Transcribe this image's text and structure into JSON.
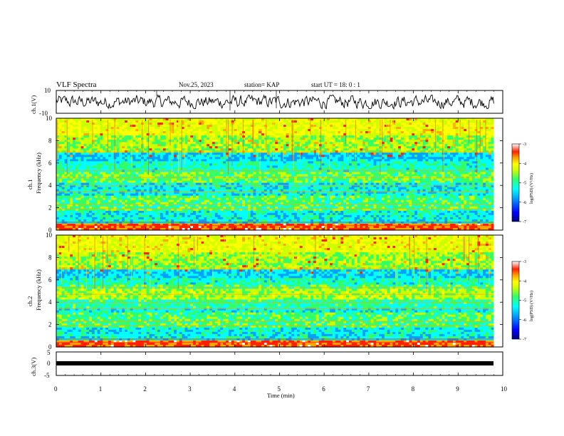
{
  "header": {
    "title": "VLF Spectra",
    "date": "Nov.25, 2023",
    "station": "station= KAP",
    "start_ut": "start  UT =   18: 0  : 1"
  },
  "chart_data": [
    {
      "type": "line",
      "panel": "ch1-waveform",
      "ylabel": "ch.1(V)",
      "ylim": [
        -10,
        10
      ],
      "ytick_labels": [
        "10",
        "-10"
      ],
      "x_range_min": [
        0,
        9.8
      ],
      "note": "noisy waveform trace, amplitude mostly between about -5 and +5 V"
    },
    {
      "type": "heatmap",
      "panel": "ch1-spectrogram",
      "ylabel": "Frequency  (kHz)",
      "channel_label": "ch.1",
      "ylim": [
        0,
        10
      ],
      "ytick_labels": [
        "0",
        "2",
        "4",
        "6",
        "8",
        "10"
      ],
      "x_range_min": [
        0,
        9.8
      ],
      "colorbar": {
        "label": "log(PSD) (V²/Hz)",
        "range": [
          -7,
          -3
        ],
        "tick_labels": [
          "-3",
          "-4",
          "-5",
          "-6",
          "-7"
        ],
        "colors": [
          "#00007f",
          "#0000ff",
          "#00a0ff",
          "#00ffff",
          "#33ff66",
          "#ccff00",
          "#ffff00",
          "#ffa500",
          "#ff2000",
          "#ffffff"
        ]
      }
    },
    {
      "type": "heatmap",
      "panel": "ch2-spectrogram",
      "ylabel": "Frequency  (kHz)",
      "channel_label": "ch.2",
      "ylim": [
        0,
        10
      ],
      "ytick_labels": [
        "0",
        "2",
        "4",
        "6",
        "8",
        "10"
      ],
      "x_range_min": [
        0,
        9.8
      ],
      "colorbar": {
        "label": "log(PSD) (V²/Hz)",
        "range": [
          -7,
          -3
        ],
        "tick_labels": [
          "-3",
          "-4",
          "-5",
          "-6",
          "-7"
        ],
        "colors": [
          "#00007f",
          "#0000ff",
          "#00a0ff",
          "#00ffff",
          "#33ff66",
          "#ccff00",
          "#ffff00",
          "#ffa500",
          "#ff2000",
          "#ffffff"
        ]
      }
    },
    {
      "type": "line",
      "panel": "ch3-waveform",
      "ylabel": "ch.3(V)",
      "ylim": [
        -5,
        5
      ],
      "ytick_labels": [
        "5",
        "0",
        "-5"
      ],
      "x_range_min": [
        0,
        9.8
      ],
      "note": "dense pulse train centred near 0 V"
    }
  ],
  "xaxis": {
    "label": "Time  (min)",
    "range": [
      0,
      10
    ],
    "tick_labels": [
      "0",
      "1",
      "2",
      "3",
      "4",
      "5",
      "6",
      "7",
      "8",
      "9",
      "10"
    ]
  }
}
